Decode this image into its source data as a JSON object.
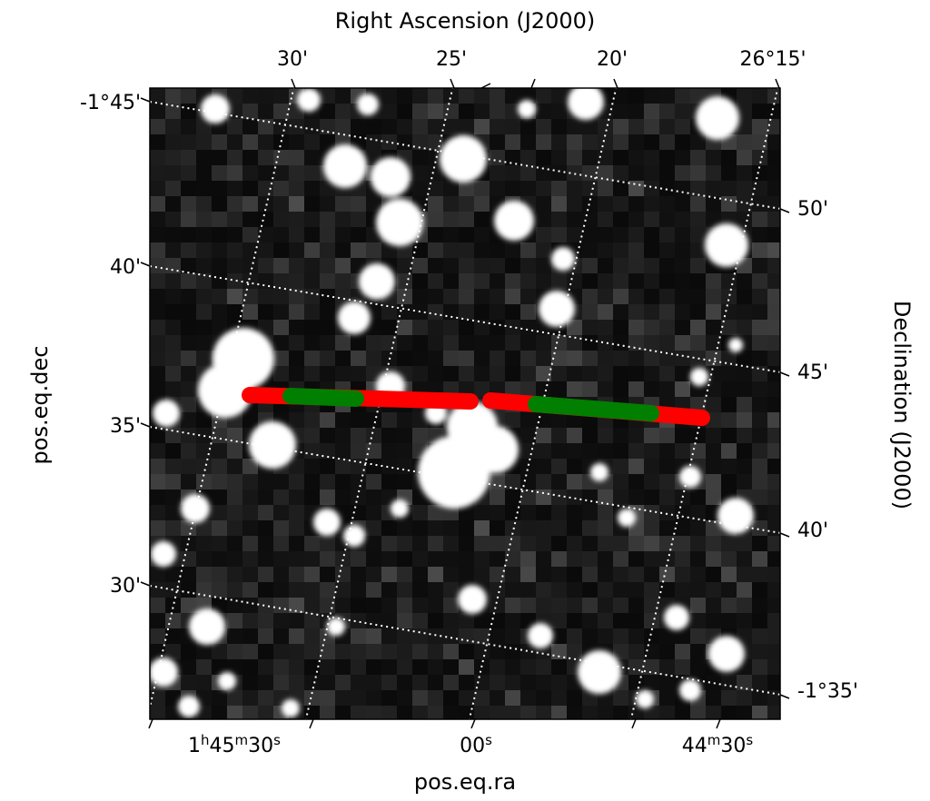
{
  "chart_data": {
    "type": "scatter",
    "background": "sky-image-grayscale",
    "top_axis_label": "Right Ascension (J2000)",
    "right_axis_label": "Declination (J2000)",
    "bottom_axis_label": "pos.eq.ra",
    "left_axis_label": "pos.eq.dec",
    "top_ticks": [
      {
        "label": "30'"
      },
      {
        "label": "25'"
      },
      {
        "label": "20'"
      },
      {
        "label": "26°15'"
      }
    ],
    "left_ticks": [
      {
        "label": "-1°45'"
      },
      {
        "label": "40'"
      },
      {
        "label": "35'"
      },
      {
        "label": "30'"
      }
    ],
    "right_ticks": [
      {
        "label": "50'"
      },
      {
        "label": "45'"
      },
      {
        "label": "40'"
      },
      {
        "label": "-1°35'"
      }
    ],
    "bottom_ticks": [
      {
        "label_main": "1",
        "sup1": "h",
        "mid": "45",
        "sup2": "m",
        "end": "30",
        "sup3": "s"
      },
      {
        "label_main": "00",
        "sup1": "s"
      },
      {
        "label_main": "44",
        "sup1": "m",
        "mid": "30",
        "sup2": "s"
      }
    ],
    "grid": true,
    "grid_style": "dotted white",
    "overlay_colors": {
      "track": "#ff0000",
      "segment": "#007f00"
    },
    "tracks": [
      {
        "name": "",
        "color": "#ff0000"
      },
      {
        "name": "",
        "color": "#ff0000"
      }
    ],
    "segments": [
      {
        "name": "",
        "color": "#007f00"
      },
      {
        "name": "",
        "color": "#007f00"
      }
    ]
  }
}
